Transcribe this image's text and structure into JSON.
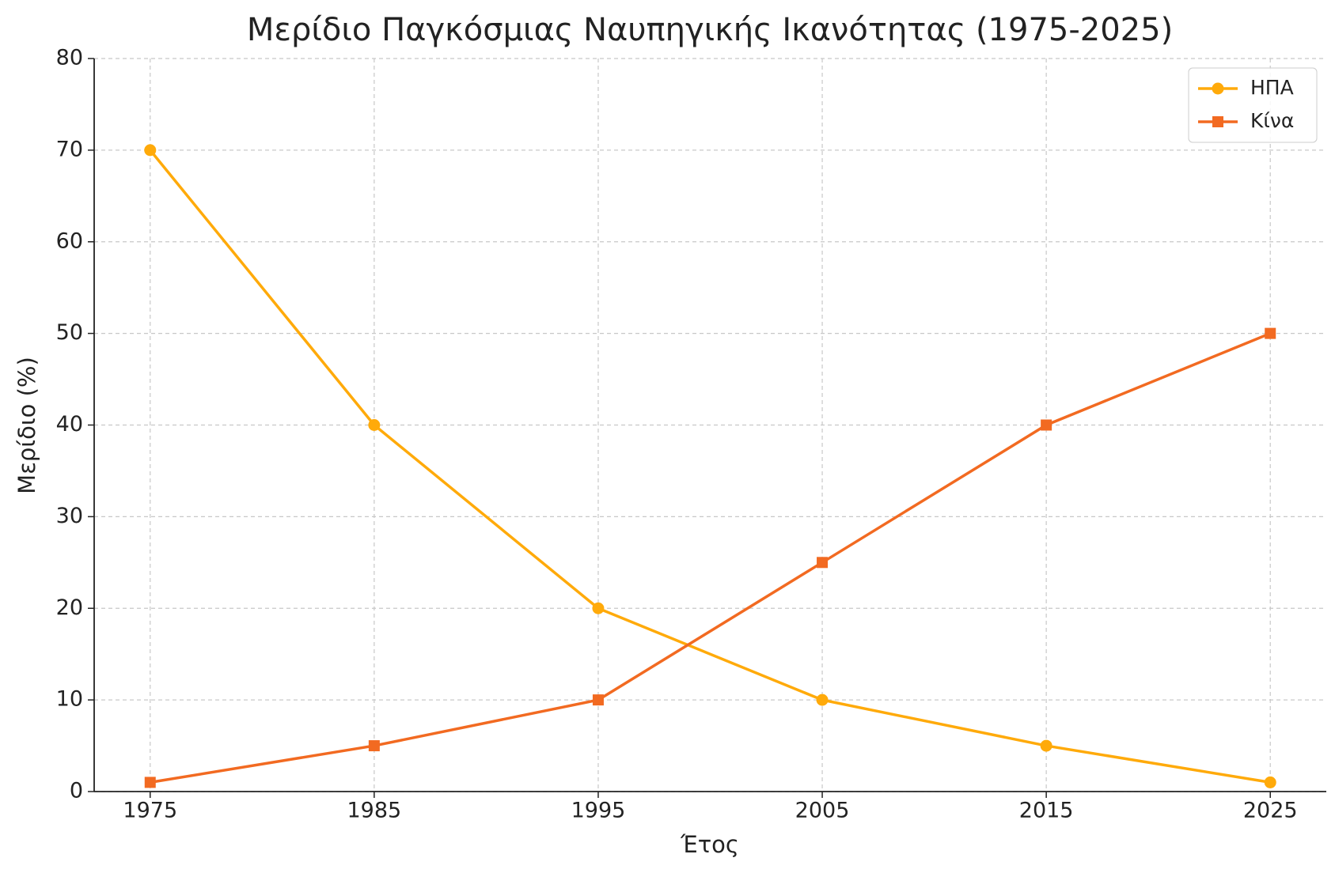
{
  "chart_data": {
    "type": "line",
    "title": "Μερίδιο Παγκόσμιας Ναυπηγικής Ικανότητας (1975-2025)",
    "x_label": "Έτος",
    "y_label": "Μερίδιο (%)",
    "x": [
      1975,
      1985,
      1995,
      2005,
      2015,
      2025
    ],
    "series": [
      {
        "name": "ΗΠΑ",
        "color": "#FFAA0A",
        "marker": "circle",
        "values": [
          70,
          40,
          20,
          10,
          5,
          1
        ]
      },
      {
        "name": "Κίνα",
        "color": "#F26A21",
        "marker": "square",
        "values": [
          1,
          5,
          10,
          25,
          40,
          50
        ]
      }
    ],
    "xlim": [
      1972.5,
      2027.5
    ],
    "xticks": [
      1975,
      1985,
      1995,
      2005,
      2015,
      2025
    ],
    "ylim": [
      0,
      80
    ],
    "yticks": [
      0,
      10,
      20,
      30,
      40,
      50,
      60,
      70,
      80
    ],
    "grid": true,
    "legend": "upper right"
  }
}
